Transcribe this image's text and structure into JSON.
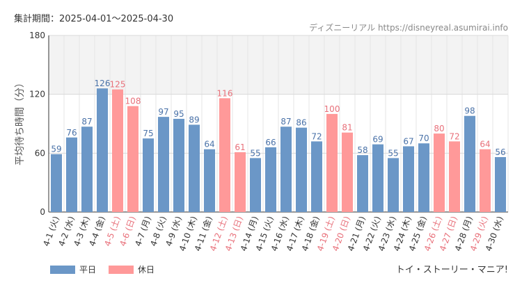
{
  "header": {
    "period": "集計期間：2025-04-01～2025-04-30",
    "source": "ディズニーリアル https://disneyreal.asumirai.info"
  },
  "attraction": "トイ・ストーリー・マニア!",
  "colors": {
    "weekday": "#6b97c7",
    "holiday": "#ff9999",
    "holiday_text": "#e8707a",
    "weekday_text": "#4a72a8"
  },
  "chart_data": {
    "type": "bar",
    "ylabel": "平均待ち時間（分）",
    "xlabel": "",
    "ylim": [
      0,
      180
    ],
    "yticks": [
      0,
      60,
      120,
      180
    ],
    "grid": true,
    "legend_position": "bottom-left",
    "series": [
      {
        "name": "平日"
      },
      {
        "name": "休日"
      }
    ],
    "categories": [
      "4-1 (火)",
      "4-2 (水)",
      "4-3 (木)",
      "4-4 (金)",
      "4-5 (土)",
      "4-6 (日)",
      "4-7 (月)",
      "4-8 (火)",
      "4-9 (水)",
      "4-10 (木)",
      "4-11 (金)",
      "4-12 (土)",
      "4-13 (日)",
      "4-14 (月)",
      "4-15 (火)",
      "4-16 (水)",
      "4-17 (木)",
      "4-18 (金)",
      "4-19 (土)",
      "4-20 (日)",
      "4-21 (月)",
      "4-22 (火)",
      "4-23 (水)",
      "4-24 (木)",
      "4-25 (金)",
      "4-26 (土)",
      "4-27 (日)",
      "4-28 (月)",
      "4-29 (火)",
      "4-30 (水)"
    ],
    "values": [
      59,
      76,
      87,
      126,
      125,
      108,
      75,
      97,
      95,
      89,
      64,
      116,
      61,
      55,
      66,
      87,
      86,
      72,
      100,
      81,
      58,
      69,
      55,
      67,
      70,
      80,
      72,
      98,
      64,
      56
    ],
    "day_type": [
      "平日",
      "平日",
      "平日",
      "平日",
      "休日",
      "休日",
      "平日",
      "平日",
      "平日",
      "平日",
      "平日",
      "休日",
      "休日",
      "平日",
      "平日",
      "平日",
      "平日",
      "平日",
      "休日",
      "休日",
      "平日",
      "平日",
      "平日",
      "平日",
      "平日",
      "休日",
      "休日",
      "平日",
      "休日",
      "平日"
    ]
  }
}
